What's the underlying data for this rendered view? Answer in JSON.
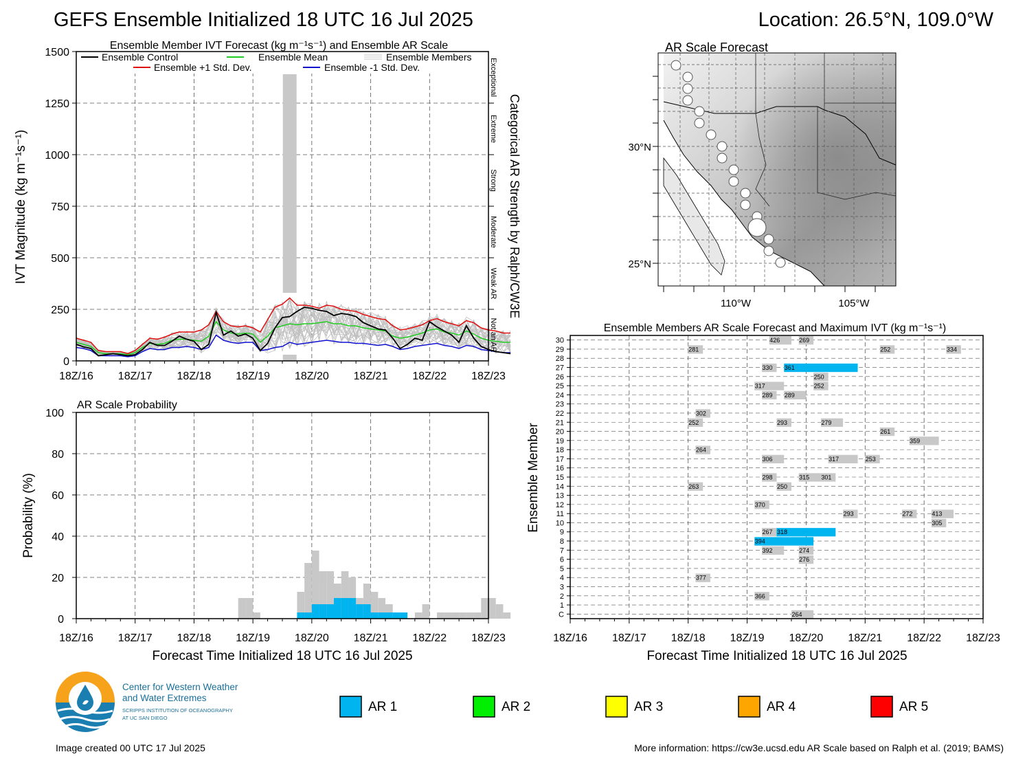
{
  "header": {
    "title": "GEFS Ensemble Initialized 18 UTC 16 Jul 2025",
    "location": "Location: 26.5°N, 109.0°W"
  },
  "colors": {
    "ar1": "#00b4f0",
    "ar2": "#00ee00",
    "ar3": "#ffff00",
    "ar4": "#ffa500",
    "ar5": "#ff0000",
    "gray_bar": "#c8c8c8",
    "control": "#000000",
    "mean": "#22cc22",
    "plus_sd": "#e01010",
    "minus_sd": "#1010d0",
    "members": "#c0c0c0"
  },
  "time_ticks": [
    "18Z/16",
    "18Z/17",
    "18Z/18",
    "18Z/19",
    "18Z/20",
    "18Z/21",
    "18Z/22",
    "18Z/23"
  ],
  "ivt_panel": {
    "title": "Ensemble Member IVT Forecast (kg m⁻¹s⁻¹) and Ensemble AR Scale",
    "ylabel": "IVT Magnitude (kg m⁻¹s⁻¹)",
    "right_label": "Categorical AR Strength by Ralph/CW3E",
    "categories": [
      "Exceptional",
      "Extreme",
      "Strong",
      "Moderate",
      "Weak AR",
      "Not an AR"
    ],
    "legend": {
      "control": "Ensemble Control",
      "mean": "Ensemble Mean",
      "members": "Ensemble Members",
      "plus": "Ensemble +1 Std. Dev.",
      "minus": "Ensemble -1 Std. Dev."
    }
  },
  "prob_panel": {
    "title": "AR Scale Probability",
    "ylabel": "Probability (%)",
    "xlabel": "Forecast Time Initialized 18 UTC 16 Jul 2025"
  },
  "map_panel": {
    "title": "AR Scale Forecast",
    "lat_labels": [
      "30°N",
      "25°N"
    ],
    "lon_labels": [
      "110°W",
      "105°W"
    ]
  },
  "member_panel": {
    "title": "Ensemble Members AR Scale Forecast and Maximum IVT (kg m⁻¹s⁻¹)",
    "ylabel": "Ensemble Member",
    "xlabel": "Forecast Time Initialized 18 UTC 16 Jul 2025"
  },
  "legend_boxes": [
    "AR 1",
    "AR 2",
    "AR 3",
    "AR 4",
    "AR 5"
  ],
  "logo": {
    "line1": "Center for Western Weather",
    "line2": "and Water Extremes",
    "line3": "SCRIPPS INSTITUTION OF OCEANOGRAPHY",
    "line4": "AT UC SAN DIEGO"
  },
  "footer": {
    "created": "Image created 00 UTC 17 Jul 2025",
    "more_info": "More information: https://cw3e.ucsd.edu AR Scale based on Ralph et al. (2019; BAMS)"
  },
  "chart_data": [
    {
      "type": "line",
      "title": "Ensemble Member IVT Forecast (kg m⁻¹s⁻¹) and Ensemble AR Scale",
      "ylabel": "IVT Magnitude (kg m⁻¹s⁻¹)",
      "ylim": [
        0,
        1500
      ],
      "yticks": [
        0,
        250,
        500,
        750,
        1000,
        1250,
        1500
      ],
      "x_step_hours": 3,
      "x_start": "18Z/16",
      "series": [
        {
          "name": "Ensemble Control",
          "values": [
            80,
            68,
            60,
            25,
            30,
            35,
            30,
            25,
            30,
            55,
            90,
            75,
            75,
            95,
            120,
            105,
            95,
            55,
            80,
            235,
            125,
            145,
            120,
            130,
            110,
            50,
            85,
            160,
            210,
            215,
            240,
            260,
            255,
            245,
            240,
            220,
            230,
            225,
            215,
            185,
            170,
            155,
            150,
            110,
            60,
            80,
            110,
            100,
            190,
            165,
            145,
            125,
            90,
            170,
            110,
            70,
            55,
            45,
            40,
            35
          ]
        },
        {
          "name": "Ensemble Mean",
          "values": [
            90,
            80,
            70,
            40,
            35,
            35,
            35,
            30,
            40,
            65,
            85,
            80,
            85,
            100,
            105,
            105,
            100,
            95,
            120,
            190,
            150,
            135,
            130,
            135,
            130,
            90,
            120,
            160,
            170,
            180,
            175,
            180,
            180,
            185,
            190,
            180,
            180,
            170,
            170,
            160,
            155,
            150,
            145,
            120,
            110,
            115,
            125,
            135,
            150,
            155,
            140,
            135,
            125,
            145,
            130,
            110,
            100,
            95,
            90,
            90
          ]
        },
        {
          "name": "Ensemble +1 Std. Dev.",
          "values": [
            110,
            100,
            90,
            50,
            45,
            45,
            45,
            35,
            50,
            80,
            110,
            105,
            115,
            130,
            140,
            140,
            140,
            150,
            175,
            240,
            190,
            170,
            165,
            170,
            160,
            140,
            200,
            260,
            275,
            305,
            270,
            270,
            265,
            255,
            270,
            265,
            250,
            245,
            240,
            225,
            215,
            205,
            200,
            170,
            150,
            155,
            165,
            175,
            195,
            205,
            190,
            180,
            170,
            195,
            185,
            160,
            150,
            145,
            135,
            135
          ]
        },
        {
          "name": "Ensemble -1 Std. Dev.",
          "values": [
            65,
            60,
            50,
            25,
            25,
            25,
            25,
            20,
            25,
            45,
            60,
            55,
            55,
            65,
            65,
            70,
            65,
            55,
            65,
            125,
            100,
            90,
            85,
            90,
            90,
            50,
            55,
            65,
            70,
            90,
            80,
            85,
            90,
            95,
            100,
            95,
            90,
            90,
            85,
            85,
            80,
            75,
            80,
            70,
            55,
            60,
            70,
            75,
            80,
            85,
            75,
            70,
            60,
            75,
            70,
            55,
            50,
            45,
            40,
            40
          ]
        }
      ],
      "ar_category_bar": [
        {
          "time": "18Z/19 + 15h",
          "range": [
            0,
            1390
          ],
          "color": "gray"
        }
      ],
      "categories_right": [
        "Exceptional",
        "Extreme",
        "Strong",
        "Moderate",
        "Weak AR",
        "Not an AR"
      ]
    },
    {
      "type": "bar",
      "title": "AR Scale Probability",
      "ylabel": "Probability (%)",
      "xlabel": "Forecast Time Initialized 18 UTC 16 Jul 2025",
      "ylim": [
        0,
        100
      ],
      "yticks": [
        0,
        20,
        40,
        60,
        80,
        100
      ],
      "x_start": "18Z/16",
      "x_step_hours": 3,
      "any_ar_percent": {
        "bins_from_hour": 66,
        "values": [
          10,
          10,
          3,
          0,
          0,
          0,
          0,
          0,
          13,
          27,
          33,
          23,
          23,
          17,
          23,
          20,
          10,
          17,
          13,
          10,
          7,
          3,
          0,
          0,
          3,
          7,
          0,
          3,
          3,
          3,
          3,
          3,
          3,
          10,
          10,
          7,
          3
        ]
      },
      "ar1_percent": {
        "bins_from_hour": 72,
        "values": [
          0,
          0,
          0,
          0,
          0,
          0,
          3,
          3,
          7,
          7,
          7,
          10,
          10,
          10,
          7,
          7,
          3,
          3,
          3,
          3,
          3
        ]
      }
    },
    {
      "type": "table",
      "title": "Ensemble Members AR Scale Forecast and Maximum IVT (kg m⁻¹s⁻¹)",
      "ylabel": "Ensemble Member",
      "xlabel": "Forecast Time Initialized 18 UTC 16 Jul 2025",
      "members": [
        "C",
        "1",
        "2",
        "3",
        "4",
        "5",
        "6",
        "7",
        "8",
        "9",
        "10",
        "11",
        "12",
        "13",
        "14",
        "15",
        "16",
        "17",
        "18",
        "19",
        "20",
        "21",
        "22",
        "23",
        "24",
        "25",
        "26",
        "27",
        "28",
        "29",
        "30"
      ],
      "events": [
        {
          "member": "C",
          "max_ivt": 264,
          "category": "none",
          "start_h": 90,
          "end_h": 99
        },
        {
          "member": "2",
          "max_ivt": 366,
          "category": "none",
          "start_h": 75,
          "end_h": 81
        },
        {
          "member": "4",
          "max_ivt": 377,
          "category": "none",
          "start_h": 51,
          "end_h": 57
        },
        {
          "member": "6",
          "max_ivt": 276,
          "category": "none",
          "start_h": 93,
          "end_h": 99
        },
        {
          "member": "7",
          "max_ivt": 392,
          "category": "none",
          "start_h": 78,
          "end_h": 87
        },
        {
          "member": "7",
          "max_ivt": 274,
          "category": "none",
          "start_h": 93,
          "end_h": 99
        },
        {
          "member": "8",
          "max_ivt": 394,
          "category": "AR 1",
          "start_h": 75,
          "end_h": 99
        },
        {
          "member": "9",
          "max_ivt": 267,
          "category": "none",
          "start_h": 78,
          "end_h": 84
        },
        {
          "member": "9",
          "max_ivt": 318,
          "category": "AR 1",
          "start_h": 84,
          "end_h": 108
        },
        {
          "member": "10",
          "max_ivt": 305,
          "category": "none",
          "start_h": 147,
          "end_h": 153
        },
        {
          "member": "11",
          "max_ivt": 293,
          "category": "none",
          "start_h": 111,
          "end_h": 117
        },
        {
          "member": "11",
          "max_ivt": 272,
          "category": "none",
          "start_h": 135,
          "end_h": 141
        },
        {
          "member": "11",
          "max_ivt": 413,
          "category": "none",
          "start_h": 147,
          "end_h": 156
        },
        {
          "member": "12",
          "max_ivt": 370,
          "category": "none",
          "start_h": 75,
          "end_h": 81
        },
        {
          "member": "14",
          "max_ivt": 263,
          "category": "none",
          "start_h": 48,
          "end_h": 54
        },
        {
          "member": "14",
          "max_ivt": 250,
          "category": "none",
          "start_h": 84,
          "end_h": 90
        },
        {
          "member": "15",
          "max_ivt": 298,
          "category": "none",
          "start_h": 78,
          "end_h": 84
        },
        {
          "member": "15",
          "max_ivt": 315,
          "category": "none",
          "start_h": 93,
          "end_h": 102
        },
        {
          "member": "15",
          "max_ivt": 301,
          "category": "none",
          "start_h": 102,
          "end_h": 108
        },
        {
          "member": "17",
          "max_ivt": 306,
          "category": "none",
          "start_h": 78,
          "end_h": 87
        },
        {
          "member": "17",
          "max_ivt": 317,
          "category": "none",
          "start_h": 105,
          "end_h": 117
        },
        {
          "member": "17",
          "max_ivt": 253,
          "category": "none",
          "start_h": 120,
          "end_h": 126
        },
        {
          "member": "18",
          "max_ivt": 264,
          "category": "none",
          "start_h": 51,
          "end_h": 57
        },
        {
          "member": "19",
          "max_ivt": 359,
          "category": "none",
          "start_h": 138,
          "end_h": 150
        },
        {
          "member": "20",
          "max_ivt": 261,
          "category": "none",
          "start_h": 126,
          "end_h": 132
        },
        {
          "member": "21",
          "max_ivt": 252,
          "category": "none",
          "start_h": 48,
          "end_h": 54
        },
        {
          "member": "21",
          "max_ivt": 293,
          "category": "none",
          "start_h": 84,
          "end_h": 90
        },
        {
          "member": "21",
          "max_ivt": 279,
          "category": "none",
          "start_h": 102,
          "end_h": 111
        },
        {
          "member": "22",
          "max_ivt": 302,
          "category": "none",
          "start_h": 51,
          "end_h": 57
        },
        {
          "member": "24",
          "max_ivt": 289,
          "category": "none",
          "start_h": 78,
          "end_h": 84
        },
        {
          "member": "24",
          "max_ivt": 289,
          "category": "none",
          "start_h": 87,
          "end_h": 96
        },
        {
          "member": "25",
          "max_ivt": 317,
          "category": "none",
          "start_h": 75,
          "end_h": 87
        },
        {
          "member": "25",
          "max_ivt": 252,
          "category": "none",
          "start_h": 99,
          "end_h": 105
        },
        {
          "member": "26",
          "max_ivt": 250,
          "category": "none",
          "start_h": 99,
          "end_h": 105
        },
        {
          "member": "27",
          "max_ivt": 330,
          "category": "none",
          "start_h": 78,
          "end_h": 84
        },
        {
          "member": "27",
          "max_ivt": 361,
          "category": "AR 1",
          "start_h": 87,
          "end_h": 117
        },
        {
          "member": "29",
          "max_ivt": 281,
          "category": "none",
          "start_h": 48,
          "end_h": 54
        },
        {
          "member": "29",
          "max_ivt": 252,
          "category": "none",
          "start_h": 126,
          "end_h": 132
        },
        {
          "member": "29",
          "max_ivt": 334,
          "category": "none",
          "start_h": 153,
          "end_h": 159
        },
        {
          "member": "30",
          "max_ivt": 426,
          "category": "none",
          "start_h": 81,
          "end_h": 90
        },
        {
          "member": "30",
          "max_ivt": 269,
          "category": "none",
          "start_h": 93,
          "end_h": 99
        }
      ]
    }
  ]
}
